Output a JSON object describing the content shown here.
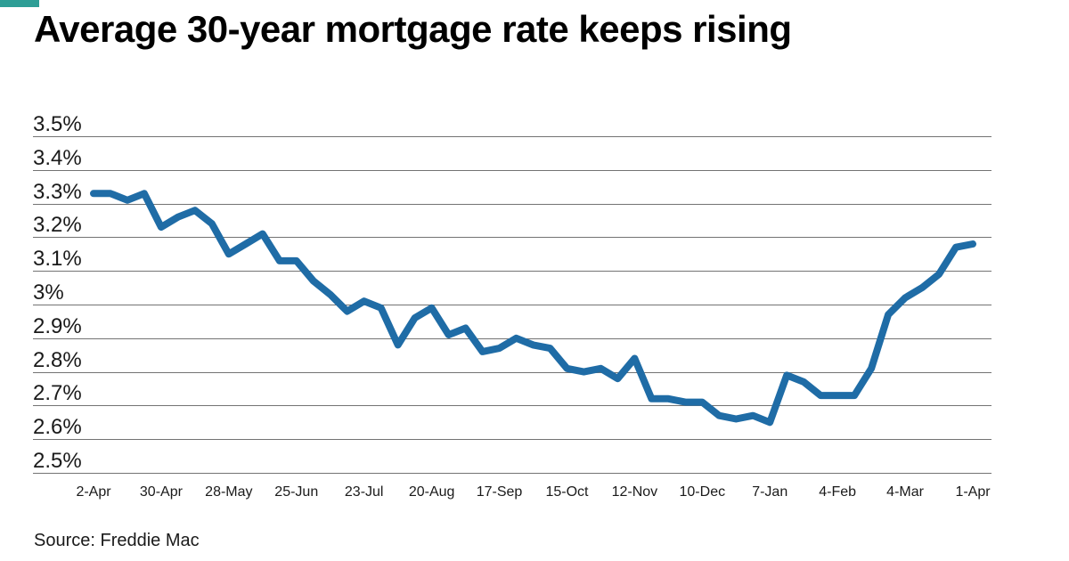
{
  "page": {
    "accent_color": "#2E9E96",
    "line_color": "#1F6CA6",
    "grid_color": "#737373",
    "text_color": "#1A1A1A"
  },
  "chart_data": {
    "type": "line",
    "title": "Average 30-year mortgage rate keeps rising",
    "source": "Source: Freddie Mac",
    "xlabel": "",
    "ylabel": "",
    "ylim": [
      2.5,
      3.5
    ],
    "grid": "horizontal",
    "legend": "none",
    "line_color": "#1F6CA6",
    "line_width": 8,
    "yticks": [
      {
        "label": "3.5%",
        "value": 3.5
      },
      {
        "label": "3.4%",
        "value": 3.4
      },
      {
        "label": "3.3%",
        "value": 3.3
      },
      {
        "label": "3.2%",
        "value": 3.2
      },
      {
        "label": "3.1%",
        "value": 3.1
      },
      {
        "label": "3%",
        "value": 3.0
      },
      {
        "label": "2.9%",
        "value": 2.9
      },
      {
        "label": "2.8%",
        "value": 2.8
      },
      {
        "label": "2.7%",
        "value": 2.7
      },
      {
        "label": "2.6%",
        "value": 2.6
      },
      {
        "label": "2.5%",
        "value": 2.5
      }
    ],
    "x": [
      "2-Apr",
      "9-Apr",
      "16-Apr",
      "23-Apr",
      "30-Apr",
      "7-May",
      "14-May",
      "21-May",
      "28-May",
      "4-Jun",
      "11-Jun",
      "18-Jun",
      "25-Jun",
      "2-Jul",
      "9-Jul",
      "16-Jul",
      "23-Jul",
      "30-Jul",
      "6-Aug",
      "13-Aug",
      "20-Aug",
      "27-Aug",
      "3-Sep",
      "10-Sep",
      "17-Sep",
      "24-Sep",
      "1-Oct",
      "8-Oct",
      "15-Oct",
      "22-Oct",
      "29-Oct",
      "5-Nov",
      "12-Nov",
      "19-Nov",
      "26-Nov",
      "3-Dec",
      "10-Dec",
      "17-Dec",
      "24-Dec",
      "31-Dec",
      "7-Jan",
      "14-Jan",
      "21-Jan",
      "28-Jan",
      "4-Feb",
      "11-Feb",
      "18-Feb",
      "25-Feb",
      "4-Mar",
      "11-Mar",
      "18-Mar",
      "25-Mar",
      "1-Apr"
    ],
    "values": [
      3.33,
      3.33,
      3.31,
      3.33,
      3.23,
      3.26,
      3.28,
      3.24,
      3.15,
      3.18,
      3.21,
      3.13,
      3.13,
      3.07,
      3.03,
      2.98,
      3.01,
      2.99,
      2.88,
      2.96,
      2.99,
      2.91,
      2.93,
      2.86,
      2.87,
      2.9,
      2.88,
      2.87,
      2.81,
      2.8,
      2.81,
      2.78,
      2.84,
      2.72,
      2.72,
      2.71,
      2.71,
      2.67,
      2.66,
      2.67,
      2.65,
      2.79,
      2.77,
      2.73,
      2.73,
      2.73,
      2.81,
      2.97,
      3.02,
      3.05,
      3.09,
      3.17,
      3.18
    ],
    "xtick_indices": [
      0,
      4,
      8,
      12,
      16,
      20,
      24,
      28,
      32,
      36,
      40,
      44,
      48,
      52
    ],
    "xtick_labels": [
      "2-Apr",
      "30-Apr",
      "28-May",
      "25-Jun",
      "23-Jul",
      "20-Aug",
      "17-Sep",
      "15-Oct",
      "12-Nov",
      "10-Dec",
      "7-Jan",
      "4-Feb",
      "4-Mar",
      "1-Apr"
    ]
  }
}
